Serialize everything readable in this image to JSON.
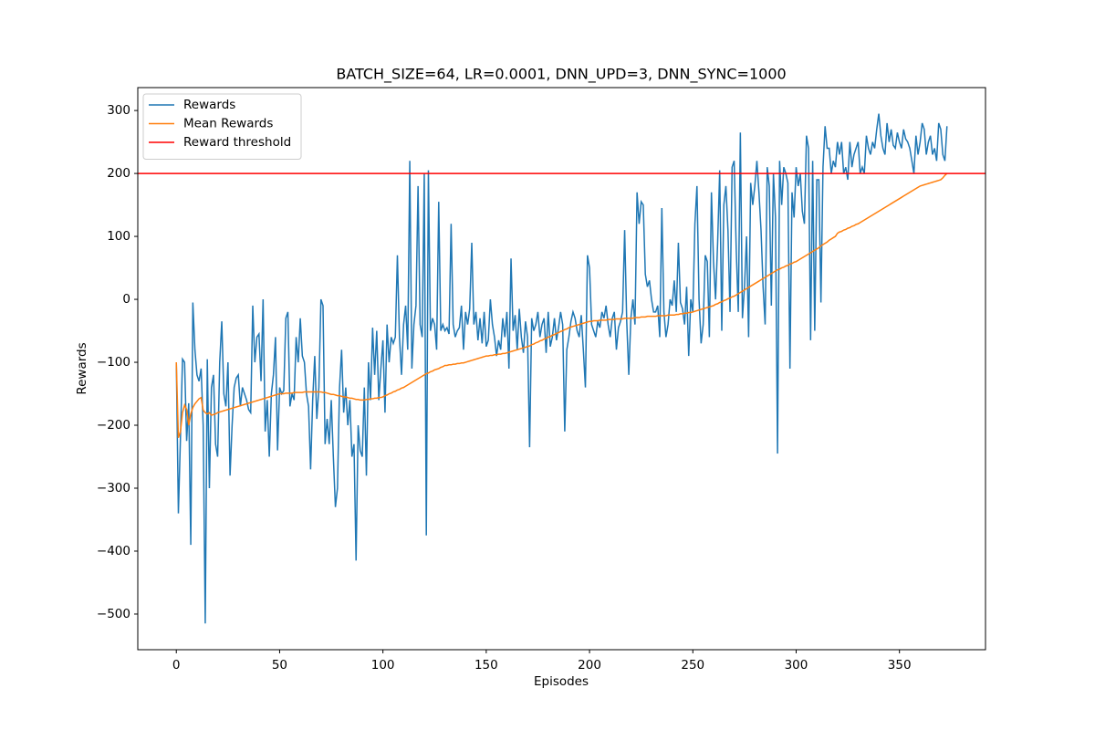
{
  "chart_data": {
    "type": "line",
    "title": "BATCH_SIZE=64, LR=0.0001, DNN_UPD=3, DNN_SYNC=1000",
    "x_label": "Episodes",
    "y_label": "Rewards",
    "xlim": [
      -18.65,
      391.65
    ],
    "ylim": [
      -556.6,
      336.4
    ],
    "xticks": [
      0,
      50,
      100,
      150,
      200,
      250,
      300,
      350
    ],
    "yticks": [
      {
        "value": -500,
        "label": "−500"
      },
      {
        "value": -400,
        "label": "−400"
      },
      {
        "value": -300,
        "label": "−300"
      },
      {
        "value": -200,
        "label": "−200"
      },
      {
        "value": -100,
        "label": "−100"
      },
      0,
      100,
      200,
      300
    ],
    "grid": false,
    "legend": "upper left",
    "x": [
      0,
      1,
      2,
      3,
      4,
      5,
      6,
      7,
      8,
      9,
      10,
      11,
      12,
      13,
      14,
      15,
      16,
      17,
      18,
      19,
      20,
      21,
      22,
      23,
      24,
      25,
      26,
      27,
      28,
      29,
      30,
      31,
      32,
      33,
      34,
      35,
      36,
      37,
      38,
      39,
      40,
      41,
      42,
      43,
      44,
      45,
      46,
      47,
      48,
      49,
      50,
      51,
      52,
      53,
      54,
      55,
      56,
      57,
      58,
      59,
      60,
      61,
      62,
      63,
      64,
      65,
      66,
      67,
      68,
      69,
      70,
      71,
      72,
      73,
      74,
      75,
      76,
      77,
      78,
      79,
      80,
      81,
      82,
      83,
      84,
      85,
      86,
      87,
      88,
      89,
      90,
      91,
      92,
      93,
      94,
      95,
      96,
      97,
      98,
      99,
      100,
      101,
      102,
      103,
      104,
      105,
      106,
      107,
      108,
      109,
      110,
      111,
      112,
      113,
      114,
      115,
      116,
      117,
      118,
      119,
      120,
      121,
      122,
      123,
      124,
      125,
      126,
      127,
      128,
      129,
      130,
      131,
      132,
      133,
      134,
      135,
      136,
      137,
      138,
      139,
      140,
      141,
      142,
      143,
      144,
      145,
      146,
      147,
      148,
      149,
      150,
      151,
      152,
      153,
      154,
      155,
      156,
      157,
      158,
      159,
      160,
      161,
      162,
      163,
      164,
      165,
      166,
      167,
      168,
      169,
      170,
      171,
      172,
      173,
      174,
      175,
      176,
      177,
      178,
      179,
      180,
      181,
      182,
      183,
      184,
      185,
      186,
      187,
      188,
      189,
      190,
      191,
      192,
      193,
      194,
      195,
      196,
      197,
      198,
      199,
      200,
      201,
      202,
      203,
      204,
      205,
      206,
      207,
      208,
      209,
      210,
      211,
      212,
      213,
      214,
      215,
      216,
      217,
      218,
      219,
      220,
      221,
      222,
      223,
      224,
      225,
      226,
      227,
      228,
      229,
      230,
      231,
      232,
      233,
      234,
      235,
      236,
      237,
      238,
      239,
      240,
      241,
      242,
      243,
      244,
      245,
      246,
      247,
      248,
      249,
      250,
      251,
      252,
      253,
      254,
      255,
      256,
      257,
      258,
      259,
      260,
      261,
      262,
      263,
      264,
      265,
      266,
      267,
      268,
      269,
      270,
      271,
      272,
      273,
      274,
      275,
      276,
      277,
      278,
      279,
      280,
      281,
      282,
      283,
      284,
      285,
      286,
      287,
      288,
      289,
      290,
      291,
      292,
      293,
      294,
      295,
      296,
      297,
      298,
      299,
      300,
      301,
      302,
      303,
      304,
      305,
      306,
      307,
      308,
      309,
      310,
      311,
      312,
      313,
      314,
      315,
      316,
      317,
      318,
      319,
      320,
      321,
      322,
      323,
      324,
      325,
      326,
      327,
      328,
      329,
      330,
      331,
      332,
      333,
      334,
      335,
      336,
      337,
      338,
      339,
      340,
      341,
      342,
      343,
      344,
      345,
      346,
      347,
      348,
      349,
      350,
      351,
      352,
      353,
      354,
      355,
      356,
      357,
      358,
      359,
      360,
      361,
      362,
      363,
      364,
      365,
      366,
      367,
      368,
      369,
      370,
      371,
      372,
      373
    ],
    "series": [
      {
        "name": "Rewards",
        "color": "#1f77b4",
        "values": [
          -100,
          -340,
          -220,
          -95,
          -100,
          -225,
          -165,
          -390,
          -5,
          -80,
          -120,
          -130,
          -110,
          -200,
          -515,
          -95,
          -300,
          -140,
          -120,
          -230,
          -250,
          -100,
          -35,
          -150,
          -170,
          -100,
          -280,
          -200,
          -140,
          -125,
          -120,
          -170,
          -140,
          -150,
          -160,
          -175,
          -180,
          -10,
          -100,
          -60,
          -55,
          -130,
          0,
          -210,
          -160,
          -250,
          -150,
          -120,
          -60,
          -240,
          -140,
          -150,
          -145,
          -30,
          -20,
          -170,
          -150,
          -160,
          -60,
          -100,
          -30,
          -90,
          -100,
          -150,
          -170,
          -270,
          -160,
          -90,
          -190,
          -140,
          0,
          -10,
          -230,
          -190,
          -230,
          -160,
          -250,
          -330,
          -300,
          -140,
          -80,
          -180,
          -140,
          -200,
          -160,
          -250,
          -230,
          -415,
          -200,
          -240,
          -250,
          -140,
          -280,
          -100,
          -160,
          -45,
          -120,
          -50,
          -160,
          -110,
          -65,
          -180,
          -40,
          -100,
          -60,
          -70,
          -60,
          70,
          -60,
          -120,
          -40,
          -10,
          -80,
          220,
          -110,
          -40,
          -10,
          180,
          -40,
          -60,
          200,
          -375,
          205,
          -50,
          -30,
          -40,
          -80,
          155,
          -50,
          -40,
          -50,
          -45,
          -55,
          120,
          -40,
          -60,
          -50,
          -45,
          -10,
          -80,
          -20,
          -40,
          -15,
          90,
          -40,
          -20,
          -65,
          -30,
          -70,
          -20,
          -75,
          -65,
          0,
          -40,
          -60,
          -90,
          -65,
          -80,
          -30,
          -60,
          -20,
          -110,
          65,
          -50,
          -25,
          -80,
          -15,
          -60,
          -85,
          -35,
          -60,
          -235,
          -30,
          -50,
          -40,
          -20,
          -60,
          -40,
          -30,
          -85,
          -20,
          -75,
          -60,
          -30,
          -65,
          -45,
          -20,
          -40,
          -210,
          -80,
          -60,
          -35,
          -20,
          -30,
          -50,
          -60,
          -25,
          -80,
          -140,
          70,
          50,
          -40,
          -50,
          -60,
          -35,
          -45,
          -20,
          -30,
          -10,
          -40,
          -60,
          -30,
          -20,
          -80,
          -45,
          -35,
          -20,
          110,
          -35,
          -120,
          -30,
          0,
          -40,
          170,
          120,
          155,
          150,
          40,
          20,
          30,
          0,
          -20,
          -20,
          -10,
          -60,
          145,
          -20,
          -60,
          -40,
          0,
          -10,
          30,
          -20,
          90,
          -5,
          -15,
          -40,
          20,
          -90,
          0,
          -20,
          120,
          180,
          0,
          -70,
          -40,
          70,
          60,
          -60,
          170,
          60,
          0,
          90,
          205,
          -50,
          150,
          180,
          110,
          -20,
          210,
          220,
          80,
          -20,
          265,
          -30,
          20,
          100,
          -60,
          185,
          150,
          180,
          220,
          170,
          110,
          20,
          -40,
          210,
          180,
          -10,
          200,
          130,
          -245,
          220,
          150,
          210,
          200,
          185,
          -110,
          170,
          130,
          210,
          180,
          200,
          140,
          120,
          260,
          240,
          -65,
          220,
          -50,
          190,
          190,
          -5,
          210,
          275,
          240,
          240,
          200,
          220,
          210,
          250,
          230,
          250,
          200,
          210,
          190,
          250,
          210,
          230,
          240,
          250,
          200,
          210,
          200,
          260,
          240,
          230,
          250,
          240,
          270,
          295,
          260,
          240,
          230,
          280,
          250,
          270,
          245,
          240,
          265,
          250,
          240,
          270,
          255,
          250,
          240,
          220,
          200,
          260,
          230,
          250,
          280,
          270,
          230,
          250,
          260,
          230,
          240,
          220,
          280,
          270,
          230,
          220,
          275
        ]
      },
      {
        "name": "Mean Rewards",
        "color": "#ff7f0e",
        "values": [
          -100,
          -220,
          -210,
          -180,
          -168,
          -175,
          -200,
          -182,
          -172,
          -166,
          -162,
          -158,
          -156,
          -176,
          -180,
          -182,
          -180,
          -184,
          -183,
          -182,
          -180,
          -179,
          -178,
          -177,
          -176,
          -175,
          -174,
          -173,
          -172,
          -171,
          -170,
          -169,
          -168,
          -167,
          -166,
          -165,
          -164,
          -163,
          -162,
          -161,
          -160,
          -159,
          -158,
          -157,
          -156,
          -155,
          -154,
          -153,
          -152,
          -151,
          -150,
          -150,
          -150,
          -149,
          -149,
          -149,
          -149,
          -148,
          -148,
          -148,
          -148,
          -148,
          -147,
          -147,
          -147,
          -147,
          -147,
          -147,
          -147,
          -147,
          -147,
          -148,
          -148,
          -149,
          -150,
          -151,
          -151,
          -152,
          -153,
          -153,
          -154,
          -155,
          -155,
          -156,
          -157,
          -157,
          -158,
          -159,
          -159,
          -160,
          -160,
          -160,
          -159,
          -159,
          -158,
          -158,
          -157,
          -157,
          -156,
          -156,
          -155,
          -153,
          -152,
          -150,
          -149,
          -147,
          -146,
          -144,
          -143,
          -141,
          -140,
          -138,
          -136,
          -134,
          -132,
          -130,
          -128,
          -126,
          -124,
          -122,
          -120,
          -118,
          -117,
          -115,
          -114,
          -112,
          -111,
          -110,
          -108,
          -107,
          -105,
          -105,
          -104,
          -104,
          -103,
          -103,
          -102,
          -102,
          -101,
          -101,
          -100,
          -99,
          -98,
          -97,
          -96,
          -95,
          -94,
          -93,
          -92,
          -91,
          -90,
          -90,
          -89,
          -89,
          -88,
          -88,
          -87,
          -87,
          -86,
          -86,
          -85,
          -84,
          -83,
          -82,
          -81,
          -80,
          -79,
          -78,
          -77,
          -76,
          -75,
          -74,
          -72,
          -71,
          -69,
          -68,
          -66,
          -65,
          -63,
          -62,
          -60,
          -59,
          -57,
          -56,
          -54,
          -53,
          -51,
          -50,
          -48,
          -47,
          -45,
          -44,
          -43,
          -42,
          -41,
          -40,
          -39,
          -38,
          -37,
          -36,
          -35,
          -35,
          -34,
          -34,
          -34,
          -33,
          -33,
          -33,
          -33,
          -32,
          -32,
          -32,
          -32,
          -31,
          -31,
          -31,
          -31,
          -30,
          -30,
          -30,
          -30,
          -30,
          -29,
          -29,
          -29,
          -28,
          -28,
          -28,
          -27,
          -27,
          -27,
          -27,
          -27,
          -26,
          -26,
          -26,
          -26,
          -26,
          -25,
          -25,
          -25,
          -25,
          -24,
          -24,
          -23,
          -23,
          -22,
          -22,
          -21,
          -21,
          -20,
          -19,
          -18,
          -17,
          -16,
          -15,
          -14,
          -13,
          -12,
          -11,
          -10,
          -8,
          -7,
          -5,
          -4,
          -2,
          -1,
          1,
          2,
          4,
          5,
          7,
          9,
          11,
          13,
          15,
          17,
          19,
          21,
          23,
          25,
          27,
          29,
          31,
          33,
          35,
          37,
          39,
          41,
          43,
          45,
          47,
          48,
          50,
          51,
          53,
          54,
          56,
          57,
          59,
          60,
          62,
          64,
          66,
          68,
          70,
          72,
          74,
          76,
          78,
          80,
          82,
          85,
          87,
          89,
          91,
          94,
          96,
          98,
          100,
          105,
          107,
          108,
          110,
          111,
          113,
          114,
          116,
          117,
          119,
          120,
          122,
          124,
          126,
          128,
          130,
          132,
          134,
          136,
          138,
          140,
          142,
          144,
          146,
          148,
          150,
          152,
          154,
          156,
          158,
          160,
          162,
          164,
          166,
          168,
          170,
          172,
          174,
          176,
          178,
          180,
          181,
          182,
          183,
          184,
          185,
          186,
          187,
          188,
          189,
          190,
          193,
          197,
          200
        ]
      }
    ],
    "threshold": {
      "name": "Reward threshold",
      "color": "#ff0000",
      "value": 200
    }
  }
}
